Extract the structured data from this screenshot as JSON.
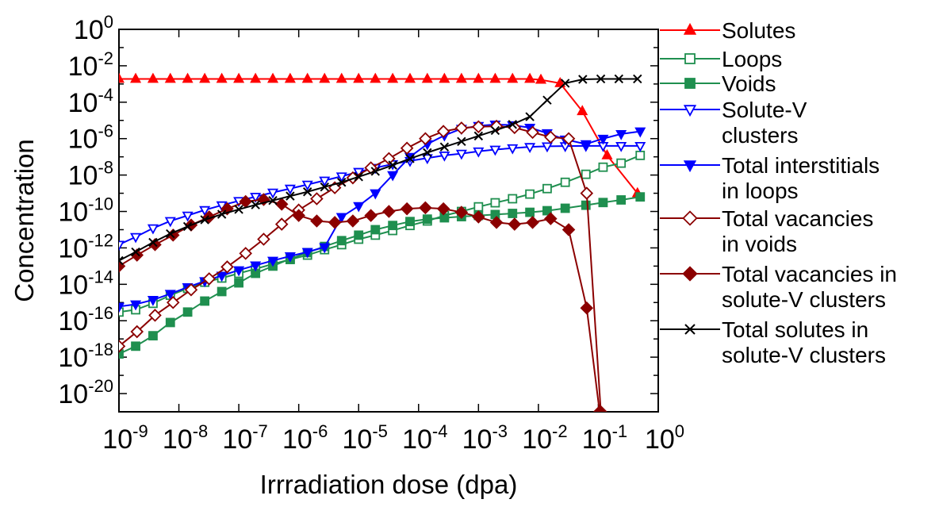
{
  "chart_data": {
    "type": "line",
    "xlabel": "Irrradiation dose (dpa)",
    "ylabel": "Concentration",
    "x_scale": "log",
    "y_scale": "log",
    "xlim": [
      1e-09,
      1
    ],
    "ylim": [
      1e-21,
      1
    ],
    "grid": false,
    "legend_position": "right",
    "x_ticks": [
      {
        "base": "10",
        "exp": "-9",
        "value": 1e-09
      },
      {
        "base": "10",
        "exp": "-8",
        "value": 1e-08
      },
      {
        "base": "10",
        "exp": "-7",
        "value": 1e-07
      },
      {
        "base": "10",
        "exp": "-6",
        "value": 1e-06
      },
      {
        "base": "10",
        "exp": "-5",
        "value": 1e-05
      },
      {
        "base": "10",
        "exp": "-4",
        "value": 0.0001
      },
      {
        "base": "10",
        "exp": "-3",
        "value": 0.001
      },
      {
        "base": "10",
        "exp": "-2",
        "value": 0.01
      },
      {
        "base": "10",
        "exp": "-1",
        "value": 0.1
      },
      {
        "base": "10",
        "exp": "0",
        "value": 1
      }
    ],
    "y_ticks": [
      {
        "base": "10",
        "exp": "0",
        "value": 1
      },
      {
        "base": "10",
        "exp": "-2",
        "value": 0.01
      },
      {
        "base": "10",
        "exp": "-4",
        "value": 0.0001
      },
      {
        "base": "10",
        "exp": "-6",
        "value": 1e-06
      },
      {
        "base": "10",
        "exp": "-8",
        "value": 1e-08
      },
      {
        "base": "10",
        "exp": "-10",
        "value": 1e-10
      },
      {
        "base": "10",
        "exp": "-12",
        "value": 1e-12
      },
      {
        "base": "10",
        "exp": "-14",
        "value": 1e-14
      },
      {
        "base": "10",
        "exp": "-16",
        "value": 1e-16
      },
      {
        "base": "10",
        "exp": "-18",
        "value": 1e-18
      },
      {
        "base": "10",
        "exp": "-20",
        "value": 1e-20
      }
    ],
    "series": [
      {
        "name": "Solutes",
        "legend_lines": [
          "Solutes"
        ],
        "color": "#ff0000",
        "marker": "triangle-up",
        "filled": true,
        "points": [
          [
            1e-09,
            0.0019
          ],
          [
            1.9e-09,
            0.0019
          ],
          [
            3.7e-09,
            0.0019
          ],
          [
            7.2e-09,
            0.0019
          ],
          [
            1.4e-08,
            0.0019
          ],
          [
            2.7e-08,
            0.0019
          ],
          [
            5.2e-08,
            0.0019
          ],
          [
            1e-07,
            0.0019
          ],
          [
            1.9e-07,
            0.0019
          ],
          [
            3.7e-07,
            0.0019
          ],
          [
            7.2e-07,
            0.0019
          ],
          [
            1.4e-06,
            0.0019
          ],
          [
            2.7e-06,
            0.0019
          ],
          [
            5.2e-06,
            0.0019
          ],
          [
            1e-05,
            0.0019
          ],
          [
            1.9e-05,
            0.0019
          ],
          [
            3.7e-05,
            0.0019
          ],
          [
            7.2e-05,
            0.0019
          ],
          [
            0.00014,
            0.0019
          ],
          [
            0.00027,
            0.0019
          ],
          [
            0.00052,
            0.0019
          ],
          [
            0.001,
            0.0019
          ],
          [
            0.0019,
            0.0019
          ],
          [
            0.0037,
            0.0019
          ],
          [
            0.0072,
            0.0019
          ],
          [
            0.011,
            0.0017
          ],
          [
            0.023,
            0.0011
          ],
          [
            0.054,
            3.2e-05
          ],
          [
            0.14,
            1.2e-07
          ],
          [
            0.45,
            1e-09
          ]
        ]
      },
      {
        "name": "Loops",
        "legend_lines": [
          "Loops"
        ],
        "color": "#1f8f4f",
        "marker": "square",
        "filled": false,
        "points": [
          [
            1e-09,
            3e-16
          ],
          [
            1.9e-09,
            4e-16
          ],
          [
            3.7e-09,
            9e-16
          ],
          [
            7.2e-09,
            2.5e-15
          ],
          [
            1.4e-08,
            6e-15
          ],
          [
            2.7e-08,
            1.3e-14
          ],
          [
            5.2e-08,
            2.2e-14
          ],
          [
            1e-07,
            4e-14
          ],
          [
            1.9e-07,
            7e-14
          ],
          [
            3.7e-07,
            1.3e-13
          ],
          [
            7.2e-07,
            2.3e-13
          ],
          [
            1.4e-06,
            4e-13
          ],
          [
            2.7e-06,
            8e-13
          ],
          [
            5.2e-06,
            1.5e-12
          ],
          [
            1e-05,
            3e-12
          ],
          [
            1.9e-05,
            5e-12
          ],
          [
            3.7e-05,
            9e-12
          ],
          [
            7.2e-05,
            1.7e-11
          ],
          [
            0.00014,
            3e-11
          ],
          [
            0.00027,
            6e-11
          ],
          [
            0.00052,
            1e-10
          ],
          [
            0.001,
            1.8e-10
          ],
          [
            0.0019,
            3e-10
          ],
          [
            0.0037,
            5e-10
          ],
          [
            0.0072,
            9e-10
          ],
          [
            0.014,
            1.8e-09
          ],
          [
            0.028,
            4e-09
          ],
          [
            0.062,
            1.1e-08
          ],
          [
            0.12,
            2.7e-08
          ],
          [
            0.24,
            4.5e-08
          ],
          [
            0.5,
            1.2e-07
          ]
        ]
      },
      {
        "name": "Voids",
        "legend_lines": [
          "Voids"
        ],
        "color": "#1f8f4f",
        "marker": "square",
        "filled": true,
        "points": [
          [
            1e-09,
            1.5e-18
          ],
          [
            1.9e-09,
            4e-18
          ],
          [
            3.7e-09,
            1.5e-17
          ],
          [
            7.2e-09,
            8e-17
          ],
          [
            1.4e-08,
            3e-16
          ],
          [
            2.7e-08,
            1.2e-15
          ],
          [
            5.2e-08,
            4e-15
          ],
          [
            1e-07,
            1.2e-14
          ],
          [
            1.9e-07,
            4e-14
          ],
          [
            3.7e-07,
            1e-13
          ],
          [
            7.2e-07,
            2.5e-13
          ],
          [
            1.4e-06,
            5.5e-13
          ],
          [
            2.7e-06,
            1.2e-12
          ],
          [
            5.2e-06,
            2.5e-12
          ],
          [
            1e-05,
            5e-12
          ],
          [
            1.9e-05,
            1e-11
          ],
          [
            3.7e-05,
            1.7e-11
          ],
          [
            7.2e-05,
            2.8e-11
          ],
          [
            0.00014,
            3.8e-11
          ],
          [
            0.00027,
            4.5e-11
          ],
          [
            0.00052,
            5.2e-11
          ],
          [
            0.001,
            6e-11
          ],
          [
            0.0019,
            6.8e-11
          ],
          [
            0.0037,
            7.8e-11
          ],
          [
            0.0072,
            9e-11
          ],
          [
            0.014,
            1.1e-10
          ],
          [
            0.028,
            1.5e-10
          ],
          [
            0.062,
            2.2e-10
          ],
          [
            0.12,
            3.1e-10
          ],
          [
            0.24,
            4.3e-10
          ],
          [
            0.5,
            6.3e-10
          ]
        ]
      },
      {
        "name": "Solute-V clusters",
        "legend_lines": [
          "Solute-V",
          "clusters"
        ],
        "color": "#0000ff",
        "marker": "triangle-down",
        "filled": false,
        "points": [
          [
            1e-09,
            1.5e-12
          ],
          [
            1.9e-09,
            4e-12
          ],
          [
            3.7e-09,
            1.2e-11
          ],
          [
            7.2e-09,
            3e-11
          ],
          [
            1.4e-08,
            6e-11
          ],
          [
            2.7e-08,
            1.2e-10
          ],
          [
            5.2e-08,
            2.2e-10
          ],
          [
            1e-07,
            3.8e-10
          ],
          [
            1.9e-07,
            6.5e-10
          ],
          [
            3.7e-07,
            1.1e-09
          ],
          [
            7.2e-07,
            1.8e-09
          ],
          [
            1.4e-06,
            3e-09
          ],
          [
            2.7e-06,
            5e-09
          ],
          [
            5.2e-06,
            8.5e-09
          ],
          [
            1e-05,
            1.5e-08
          ],
          [
            1.9e-05,
            2.5e-08
          ],
          [
            3.7e-05,
            4e-08
          ],
          [
            7.2e-05,
            6e-08
          ],
          [
            0.00014,
            8.5e-08
          ],
          [
            0.00027,
            1.2e-07
          ],
          [
            0.00052,
            1.5e-07
          ],
          [
            0.001,
            2e-07
          ],
          [
            0.0019,
            2.5e-07
          ],
          [
            0.0037,
            3e-07
          ],
          [
            0.0072,
            3.5e-07
          ],
          [
            0.014,
            3.8e-07
          ],
          [
            0.028,
            3.9e-07
          ],
          [
            0.062,
            4e-07
          ],
          [
            0.12,
            4e-07
          ],
          [
            0.24,
            4e-07
          ],
          [
            0.5,
            4e-07
          ]
        ]
      },
      {
        "name": "Total interstitials in loops",
        "legend_lines": [
          "Total interstitials",
          " in loops"
        ],
        "color": "#0000ff",
        "marker": "triangle-down",
        "filled": true,
        "points": [
          [
            1e-09,
            6e-16
          ],
          [
            1.9e-09,
            8e-16
          ],
          [
            3.7e-09,
            1.4e-15
          ],
          [
            7.2e-09,
            3e-15
          ],
          [
            1.4e-08,
            7e-15
          ],
          [
            2.7e-08,
            1.5e-14
          ],
          [
            5.2e-08,
            3e-14
          ],
          [
            1e-07,
            6e-14
          ],
          [
            1.9e-07,
            1.1e-13
          ],
          [
            3.7e-07,
            2e-13
          ],
          [
            7.2e-07,
            3.5e-13
          ],
          [
            1.4e-06,
            6e-13
          ],
          [
            2.7e-06,
            1.1e-12
          ],
          [
            5.2e-06,
            5e-11
          ],
          [
            1e-05,
            2e-10
          ],
          [
            1.9e-05,
            1e-09
          ],
          [
            3.7e-05,
            1e-08
          ],
          [
            7.2e-05,
            1e-07
          ],
          [
            0.00014,
            5e-07
          ],
          [
            0.00027,
            1.5e-06
          ],
          [
            0.00052,
            3.5e-06
          ],
          [
            0.001,
            5e-06
          ],
          [
            0.0019,
            6e-06
          ],
          [
            0.0037,
            5.5e-06
          ],
          [
            0.0072,
            4e-06
          ],
          [
            0.014,
            2e-06
          ],
          [
            0.028,
            9e-07
          ],
          [
            0.062,
            5e-07
          ],
          [
            0.12,
            1e-06
          ],
          [
            0.24,
            1.8e-06
          ],
          [
            0.5,
            2.5e-06
          ]
        ]
      },
      {
        "name": "Total vacancies in voids",
        "legend_lines": [
          "Total vacancies",
          " in voids"
        ],
        "color": "#8b0000",
        "marker": "diamond",
        "filled": false,
        "points": [
          [
            1e-09,
            4e-18
          ],
          [
            2e-09,
            2.5e-17
          ],
          [
            4e-09,
            2e-16
          ],
          [
            8e-09,
            1e-15
          ],
          [
            1.6e-08,
            5e-15
          ],
          [
            3.2e-08,
            2e-14
          ],
          [
            6.4e-08,
            9e-14
          ],
          [
            1.3e-07,
            5e-13
          ],
          [
            2.6e-07,
            3e-12
          ],
          [
            5.2e-07,
            2e-11
          ],
          [
            1e-06,
            1.2e-10
          ],
          [
            2e-06,
            5e-10
          ],
          [
            4e-06,
            2e-09
          ],
          [
            8e-06,
            7e-09
          ],
          [
            1.6e-05,
            2.5e-08
          ],
          [
            3.2e-05,
            8e-08
          ],
          [
            6.4e-05,
            3e-07
          ],
          [
            0.00013,
            1e-06
          ],
          [
            0.00026,
            2.5e-06
          ],
          [
            0.00052,
            3.8e-06
          ],
          [
            0.001,
            4.5e-06
          ],
          [
            0.002,
            4.8e-06
          ],
          [
            0.004,
            4e-06
          ],
          [
            0.008,
            2.2e-06
          ],
          [
            0.016,
            1.2e-06
          ],
          [
            0.032,
            1e-06
          ],
          [
            0.064,
            1e-09
          ],
          [
            0.11,
            1e-21
          ]
        ]
      },
      {
        "name": "Total vacancies in solute-V clusters",
        "legend_lines": [
          "Total vacancies in",
          "solute-V clusters"
        ],
        "color": "#8b0000",
        "marker": "diamond",
        "filled": true,
        "points": [
          [
            1e-09,
            1e-13
          ],
          [
            2e-09,
            4e-13
          ],
          [
            4e-09,
            1.5e-12
          ],
          [
            8e-09,
            5e-12
          ],
          [
            1.6e-08,
            1.8e-11
          ],
          [
            3.2e-08,
            5e-11
          ],
          [
            6.4e-08,
            1.4e-10
          ],
          [
            1.3e-07,
            3.5e-10
          ],
          [
            2.6e-07,
            4.5e-10
          ],
          [
            5.2e-07,
            2.5e-10
          ],
          [
            1e-06,
            6e-11
          ],
          [
            2e-06,
            3e-11
          ],
          [
            4e-06,
            2.5e-11
          ],
          [
            8e-06,
            3e-11
          ],
          [
            1.6e-05,
            6e-11
          ],
          [
            3.2e-05,
            1e-10
          ],
          [
            6.4e-05,
            1.4e-10
          ],
          [
            0.00013,
            1.6e-10
          ],
          [
            0.00026,
            1.4e-10
          ],
          [
            0.00052,
            9e-11
          ],
          [
            0.001,
            5e-11
          ],
          [
            0.002,
            2.5e-11
          ],
          [
            0.004,
            2e-11
          ],
          [
            0.008,
            2.5e-11
          ],
          [
            0.016,
            4e-11
          ],
          [
            0.032,
            1e-11
          ],
          [
            0.064,
            5e-16
          ],
          [
            0.105,
            1e-21
          ]
        ]
      },
      {
        "name": "Total solutes in solute-V clusters",
        "legend_lines": [
          "Total solutes in",
          "solute-V clusters"
        ],
        "color": "#000000",
        "marker": "x",
        "filled": false,
        "points": [
          [
            1e-09,
            2e-13
          ],
          [
            1.9e-09,
            6e-13
          ],
          [
            3.7e-09,
            2e-12
          ],
          [
            7.2e-09,
            6e-12
          ],
          [
            1.4e-08,
            1.5e-11
          ],
          [
            2.7e-08,
            3.5e-11
          ],
          [
            5.2e-08,
            7e-11
          ],
          [
            1e-07,
            1.3e-10
          ],
          [
            1.9e-07,
            2.3e-10
          ],
          [
            3.7e-07,
            4e-10
          ],
          [
            7.2e-07,
            7e-10
          ],
          [
            1.4e-06,
            1.2e-09
          ],
          [
            2.7e-06,
            2.2e-09
          ],
          [
            5.2e-06,
            4e-09
          ],
          [
            1e-05,
            8e-09
          ],
          [
            1.9e-05,
            1.6e-08
          ],
          [
            3.7e-05,
            3.5e-08
          ],
          [
            7.2e-05,
            8e-08
          ],
          [
            0.00014,
            1.7e-07
          ],
          [
            0.00027,
            3.5e-07
          ],
          [
            0.00052,
            7e-07
          ],
          [
            0.001,
            1.4e-06
          ],
          [
            0.0019,
            2.8e-06
          ],
          [
            0.0037,
            6e-06
          ],
          [
            0.0072,
            1.6e-05
          ],
          [
            0.014,
            0.00013
          ],
          [
            0.028,
            0.0011
          ],
          [
            0.055,
            0.0018
          ],
          [
            0.11,
            0.0019
          ],
          [
            0.22,
            0.0019
          ],
          [
            0.45,
            0.0019
          ]
        ]
      }
    ]
  }
}
